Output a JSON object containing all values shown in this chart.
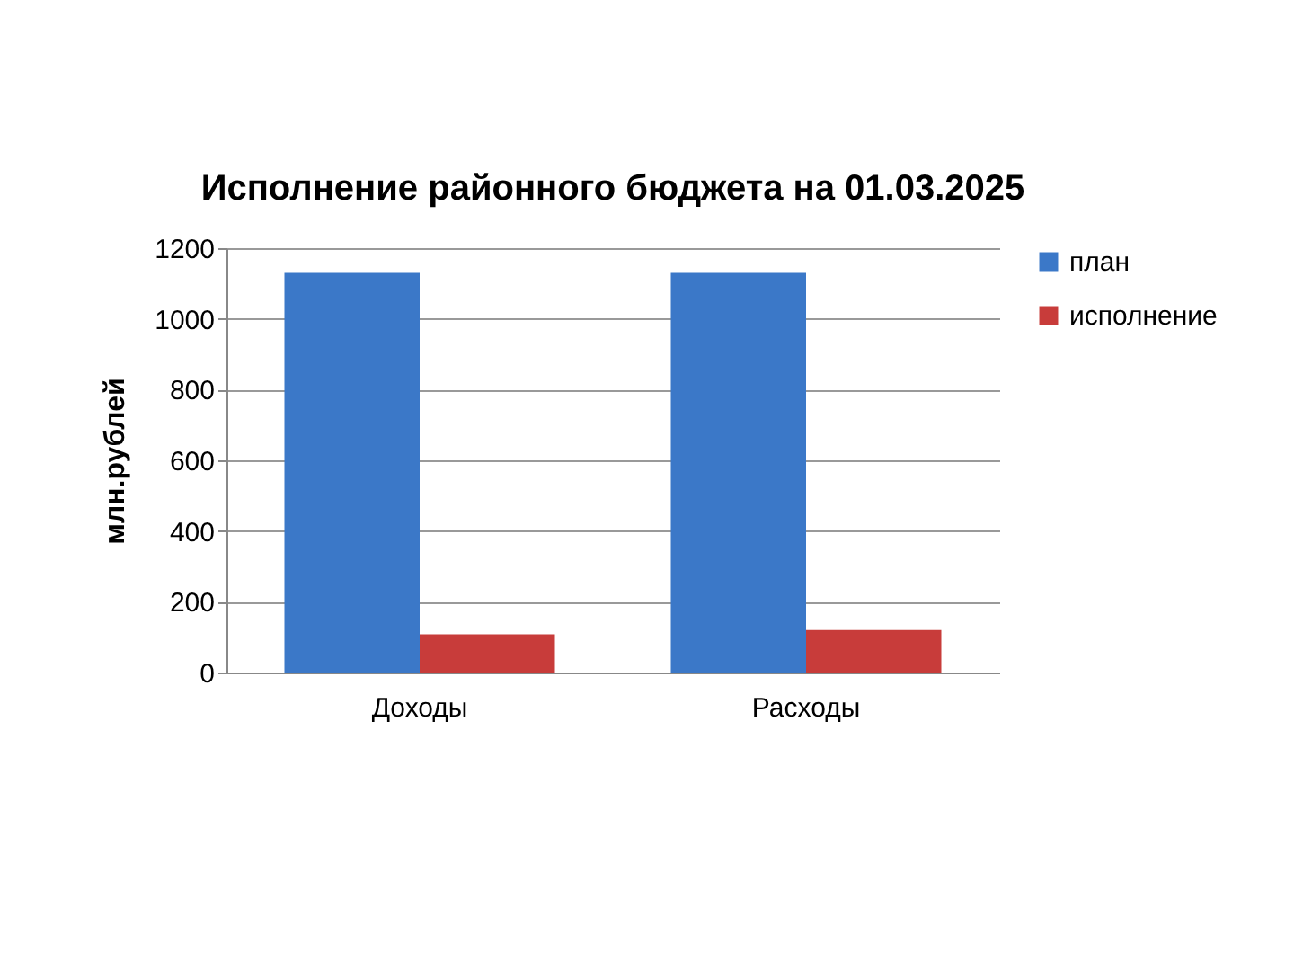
{
  "chart_data": {
    "type": "bar",
    "title": "Исполнение районного бюджета на 01.03.2025",
    "ylabel": "млн.рублей",
    "categories": [
      "Доходы",
      "Расходы"
    ],
    "series": [
      {
        "name": "план",
        "color": "#3b78c8",
        "values": [
          1130,
          1130
        ]
      },
      {
        "name": "исполнение",
        "color": "#c83c3a",
        "values": [
          108,
          120
        ]
      }
    ],
    "ylim": [
      0,
      1200
    ],
    "yticks": [
      0,
      200,
      400,
      600,
      800,
      1000,
      1200
    ],
    "grid": "y",
    "legend": "right"
  }
}
